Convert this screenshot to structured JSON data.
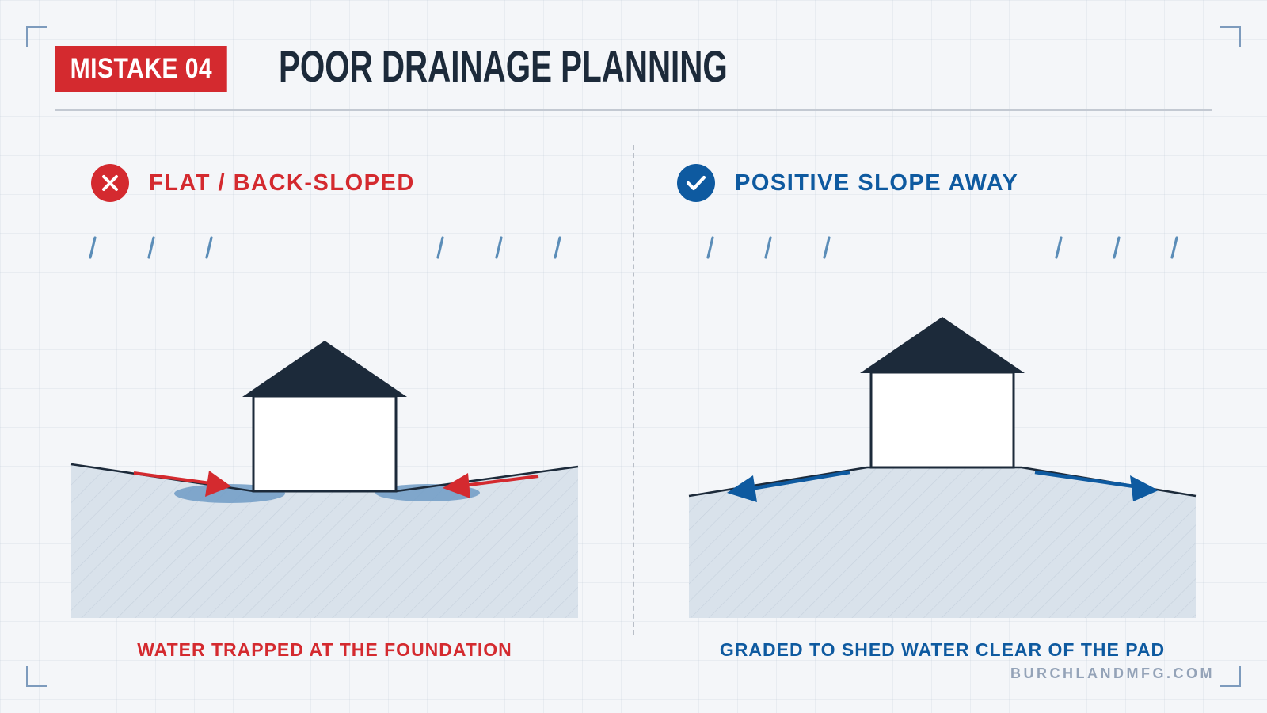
{
  "header": {
    "badge": "MISTAKE 04",
    "title": "POOR DRAINAGE PLANNING"
  },
  "panels": {
    "left": {
      "label": "FLAT / BACK-SLOPED",
      "icon": "x-icon",
      "caption": "WATER TRAPPED AT THE FOUNDATION"
    },
    "right": {
      "label": "POSITIVE SLOPE AWAY",
      "icon": "check-icon",
      "caption": "GRADED TO SHED WATER CLEAR OF THE PAD"
    }
  },
  "footer": {
    "website": "BURCHLANDMFG.COM"
  },
  "colors": {
    "bad": "#d42a2f",
    "good": "#0e5aa0",
    "navy": "#1c2a3a",
    "ground": "#d9e2eb",
    "rain": "#5b8db8",
    "pond": "#6f9bc6"
  }
}
